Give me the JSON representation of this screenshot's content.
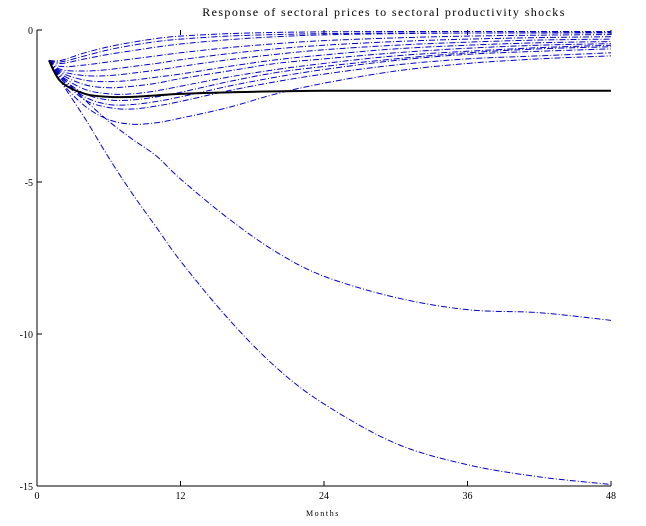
{
  "chart_data": {
    "type": "line",
    "title": "Response of sectoral prices to sectoral productivity shocks",
    "xlabel": "Months",
    "ylabel": "",
    "xlim": [
      0,
      48
    ],
    "ylim": [
      -15,
      0
    ],
    "xticks": [
      0,
      12,
      24,
      36,
      48
    ],
    "yticks": [
      0,
      -5,
      -10,
      -15
    ],
    "xtick_labels": [
      "0",
      "12",
      "24",
      "36",
      "48"
    ],
    "ytick_labels": [
      "0",
      "-5",
      "-10",
      "-15"
    ],
    "grid": false,
    "legend": "none",
    "series": [
      {
        "style": "solid",
        "color": "#000000",
        "x": [
          1,
          2,
          4,
          6,
          8,
          10,
          12,
          16,
          24,
          36,
          48
        ],
        "y": [
          -1.0,
          -1.7,
          -2.1,
          -2.2,
          -2.2,
          -2.15,
          -2.1,
          -2.05,
          -2.0,
          -2.0,
          -2.0
        ]
      },
      {
        "style": "dashdot",
        "color": "#0000cc",
        "x": [
          1,
          2,
          4,
          6,
          8,
          10,
          12,
          16,
          20,
          24,
          30,
          36,
          42,
          48
        ],
        "y": [
          -1.0,
          -1.7,
          -2.5,
          -2.95,
          -3.1,
          -3.05,
          -2.9,
          -2.55,
          -2.1,
          -1.75,
          -1.35,
          -1.1,
          -0.95,
          -0.85
        ]
      },
      {
        "style": "dashdot",
        "color": "#0000cc",
        "x": [
          1,
          2,
          4,
          6,
          8,
          10,
          12,
          16,
          20,
          24,
          30,
          36,
          42,
          48
        ],
        "y": [
          -1.0,
          -1.6,
          -2.3,
          -2.55,
          -2.6,
          -2.5,
          -2.35,
          -2.0,
          -1.7,
          -1.45,
          -1.15,
          -0.95,
          -0.85,
          -0.75
        ]
      },
      {
        "style": "dashdot",
        "color": "#0000cc",
        "x": [
          1,
          2,
          4,
          6,
          8,
          10,
          12,
          16,
          20,
          24,
          30,
          36,
          42,
          48
        ],
        "y": [
          -1.0,
          -1.6,
          -2.2,
          -2.45,
          -2.45,
          -2.35,
          -2.2,
          -1.85,
          -1.55,
          -1.3,
          -1.0,
          -0.8,
          -0.7,
          -0.62
        ]
      },
      {
        "style": "dashdot",
        "color": "#0000cc",
        "x": [
          1,
          2,
          4,
          6,
          8,
          10,
          12,
          16,
          20,
          24,
          30,
          36,
          42,
          48
        ],
        "y": [
          -1.0,
          -1.55,
          -2.1,
          -2.3,
          -2.3,
          -2.2,
          -2.05,
          -1.7,
          -1.4,
          -1.2,
          -0.95,
          -0.75,
          -0.62,
          -0.55
        ]
      },
      {
        "style": "dashdot",
        "color": "#0000cc",
        "x": [
          1,
          2,
          4,
          6,
          8,
          10,
          12,
          16,
          20,
          24,
          30,
          36,
          42,
          48
        ],
        "y": [
          -1.0,
          -1.5,
          -1.95,
          -2.1,
          -2.1,
          -2.0,
          -1.85,
          -1.55,
          -1.3,
          -1.1,
          -0.85,
          -0.7,
          -0.58,
          -0.5
        ]
      },
      {
        "style": "dashdot",
        "color": "#0000cc",
        "x": [
          1,
          2,
          4,
          6,
          8,
          10,
          12,
          16,
          20,
          24,
          30,
          36,
          42,
          48
        ],
        "y": [
          -1.0,
          -1.45,
          -1.8,
          -1.9,
          -1.85,
          -1.75,
          -1.6,
          -1.35,
          -1.1,
          -0.95,
          -0.75,
          -0.6,
          -0.5,
          -0.45
        ]
      },
      {
        "style": "dashdot",
        "color": "#0000cc",
        "x": [
          1,
          2,
          4,
          6,
          8,
          10,
          12,
          16,
          20,
          24,
          30,
          36,
          42,
          48
        ],
        "y": [
          -1.0,
          -1.4,
          -1.65,
          -1.7,
          -1.65,
          -1.55,
          -1.45,
          -1.2,
          -0.98,
          -0.82,
          -0.62,
          -0.5,
          -0.42,
          -0.38
        ]
      },
      {
        "style": "dashdot",
        "color": "#0000cc",
        "x": [
          1,
          2,
          4,
          6,
          8,
          10,
          12,
          16,
          20,
          24,
          30,
          36,
          42,
          48
        ],
        "y": [
          -1.0,
          -1.35,
          -1.5,
          -1.5,
          -1.42,
          -1.32,
          -1.2,
          -0.98,
          -0.8,
          -0.65,
          -0.5,
          -0.4,
          -0.33,
          -0.3
        ]
      },
      {
        "style": "dashdot",
        "color": "#0000cc",
        "x": [
          1,
          2,
          4,
          6,
          8,
          10,
          12,
          16,
          20,
          24,
          30,
          36,
          42,
          48
        ],
        "y": [
          -1.0,
          -1.3,
          -1.35,
          -1.3,
          -1.2,
          -1.1,
          -0.98,
          -0.78,
          -0.62,
          -0.5,
          -0.38,
          -0.3,
          -0.25,
          -0.22
        ]
      },
      {
        "style": "dashdot",
        "color": "#0000cc",
        "x": [
          1,
          2,
          4,
          6,
          8,
          10,
          12,
          16,
          20,
          24,
          30,
          36,
          42,
          48
        ],
        "y": [
          -1.0,
          -1.2,
          -1.15,
          -1.05,
          -0.95,
          -0.85,
          -0.75,
          -0.58,
          -0.45,
          -0.35,
          -0.26,
          -0.2,
          -0.17,
          -0.15
        ]
      },
      {
        "style": "dashdot",
        "color": "#0000cc",
        "x": [
          1,
          2,
          4,
          6,
          8,
          10,
          12,
          16,
          20,
          24,
          30,
          36,
          42,
          48
        ],
        "y": [
          -1.0,
          -1.1,
          -0.95,
          -0.8,
          -0.68,
          -0.56,
          -0.46,
          -0.32,
          -0.22,
          -0.16,
          -0.12,
          -0.1,
          -0.09,
          -0.08
        ]
      },
      {
        "style": "dashdot",
        "color": "#0000cc",
        "x": [
          1,
          2,
          4,
          6,
          8,
          10,
          12,
          16,
          20,
          24,
          30,
          36,
          42,
          48
        ],
        "y": [
          -1.0,
          -1.0,
          -0.75,
          -0.55,
          -0.4,
          -0.28,
          -0.2,
          -0.12,
          -0.08,
          -0.06,
          -0.05,
          -0.05,
          -0.05,
          -0.05
        ]
      },
      {
        "style": "dashdot",
        "color": "#0000cc",
        "x": [
          1,
          2,
          4,
          6,
          8,
          10,
          12,
          16,
          20,
          24,
          30,
          36,
          42,
          48
        ],
        "y": [
          -1.0,
          -1.05,
          -0.85,
          -0.65,
          -0.5,
          -0.38,
          -0.3,
          -0.2,
          -0.15,
          -0.12,
          -0.1,
          -0.1,
          -0.1,
          -0.1
        ]
      },
      {
        "style": "dashdot",
        "color": "#0000cc",
        "x": [
          1,
          2,
          4,
          6,
          8,
          10,
          12,
          16,
          20,
          24,
          30,
          36,
          42,
          48
        ],
        "y": [
          -1.0,
          -1.5,
          -2.3,
          -3.0,
          -3.6,
          -4.15,
          -4.9,
          -6.2,
          -7.3,
          -8.1,
          -8.8,
          -9.2,
          -9.3,
          -9.55
        ]
      },
      {
        "style": "dashdot",
        "color": "#0000cc",
        "x": [
          1,
          2,
          4,
          6,
          8,
          10,
          12,
          16,
          20,
          24,
          30,
          36,
          42,
          48
        ],
        "y": [
          -1.0,
          -1.7,
          -2.9,
          -4.2,
          -5.4,
          -6.5,
          -7.6,
          -9.5,
          -11.1,
          -12.3,
          -13.6,
          -14.3,
          -14.7,
          -14.95
        ]
      }
    ]
  }
}
